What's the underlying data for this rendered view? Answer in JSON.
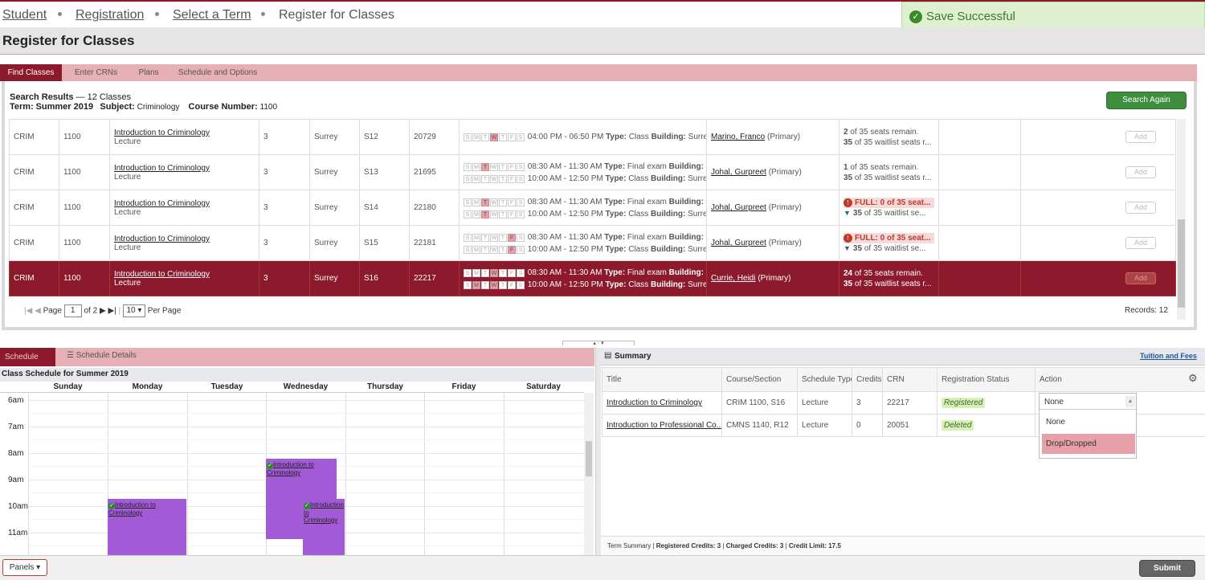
{
  "breadcrumb": [
    "Student",
    "Registration",
    "Select a Term",
    "Register for Classes"
  ],
  "toast": "Save Successful",
  "page_title": "Register for Classes",
  "tabs": [
    "Find Classes",
    "Enter CRNs",
    "Plans",
    "Schedule and Options"
  ],
  "search": {
    "heading": "Search Results",
    "count": "— 12 Classes",
    "term_label": "Term:",
    "term": "Summer 2019",
    "subject_label": "Subject:",
    "subject": "Criminology",
    "course_label": "Course Number:",
    "course": "1100",
    "search_again": "Search Again"
  },
  "rows": [
    {
      "subj": "CRIM",
      "num": "1100",
      "title": "Introduction to Criminology",
      "type": "Lecture",
      "cr": "3",
      "campus": "Surrey",
      "sec": "S12",
      "crn": "20729",
      "meet": [
        {
          "days": [
            "W"
          ],
          "text": "04:00 PM - 06:50 PM",
          "mtype": "Class",
          "bld": "Surre"
        }
      ],
      "instr": "Marino, Franco",
      "role": "(Primary)",
      "seats": "2",
      "seat_text": "of 35 seats remain.",
      "wait": "35",
      "wait_text": "of 35 waitlist seats r...",
      "full": false
    },
    {
      "subj": "CRIM",
      "num": "1100",
      "title": "Introduction to Criminology",
      "type": "Lecture",
      "cr": "3",
      "campus": "Surrey",
      "sec": "S13",
      "crn": "21695",
      "meet": [
        {
          "days": [
            "T"
          ],
          "text": "08:30 AM - 11:30 AM",
          "mtype": "Final exam",
          "bld": ""
        },
        {
          "days": [],
          "text": "10:00 AM - 12:50 PM",
          "mtype": "Class",
          "bld": "Surre"
        }
      ],
      "instr": "Johal, Gurpreet",
      "role": "(Primary)",
      "seats": "1",
      "seat_text": "of 35 seats remain.",
      "wait": "35",
      "wait_text": "of 35 waitlist seats r...",
      "full": false
    },
    {
      "subj": "CRIM",
      "num": "1100",
      "title": "Introduction to Criminology",
      "type": "Lecture",
      "cr": "3",
      "campus": "Surrey",
      "sec": "S14",
      "crn": "22180",
      "meet": [
        {
          "days": [
            "T"
          ],
          "text": "08:30 AM - 11:30 AM",
          "mtype": "Final exam",
          "bld": ""
        },
        {
          "days": [
            "T"
          ],
          "text": "10:00 AM - 12:50 PM",
          "mtype": "Class",
          "bld": "Surre"
        }
      ],
      "instr": "Johal, Gurpreet",
      "role": "(Primary)",
      "seats": "",
      "seat_text": "FULL: 0 of 35 seat...",
      "wait": "35",
      "wait_text": "of 35 waitlist se...",
      "full": true
    },
    {
      "subj": "CRIM",
      "num": "1100",
      "title": "Introduction to Criminology",
      "type": "Lecture",
      "cr": "3",
      "campus": "Surrey",
      "sec": "S15",
      "crn": "22181",
      "meet": [
        {
          "days": [
            "F"
          ],
          "text": "08:30 AM - 11:30 AM",
          "mtype": "Final exam",
          "bld": ""
        },
        {
          "days": [
            "F"
          ],
          "text": "10:00 AM - 12:50 PM",
          "mtype": "Class",
          "bld": "Surre"
        }
      ],
      "instr": "Johal, Gurpreet",
      "role": "(Primary)",
      "seats": "",
      "seat_text": "FULL: 0 of 35 seat...",
      "wait": "35",
      "wait_text": "of 35 waitlist se...",
      "full": true
    },
    {
      "subj": "CRIM",
      "num": "1100",
      "title": "Introduction to Criminology",
      "type": "Lecture",
      "cr": "3",
      "campus": "Surrey",
      "sec": "S16",
      "crn": "22217",
      "meet": [
        {
          "days": [
            "W"
          ],
          "text": "08:30 AM - 11:30 AM",
          "mtype": "Final exam",
          "bld": ""
        },
        {
          "days": [
            "M",
            "W"
          ],
          "text": "10:00 AM - 12:50 PM",
          "mtype": "Class",
          "bld": "Surre"
        }
      ],
      "instr": "Currie, Heidi",
      "role": "(Primary)",
      "seats": "24",
      "seat_text": "of 35 seats remain.",
      "wait": "35",
      "wait_text": "of 35 waitlist seats r...",
      "full": false,
      "selected": true
    }
  ],
  "labels": {
    "type": "Type:",
    "building": "Building:",
    "add": "Add"
  },
  "pager": {
    "page_label": "Page",
    "page": "1",
    "of": "of",
    "total": "2",
    "per_page": "10",
    "per_page_label": "Per Page",
    "records": "Records: 12"
  },
  "schedule": {
    "tab_schedule": "Schedule",
    "tab_details": "Schedule Details",
    "title": "Class Schedule for Summer 2019",
    "days": [
      "Sunday",
      "Monday",
      "Tuesday",
      "Wednesday",
      "Thursday",
      "Friday",
      "Saturday"
    ],
    "hours": [
      "6am",
      "7am",
      "8am",
      "9am",
      "10am",
      "11am"
    ],
    "event_title": "Introduction to Criminology"
  },
  "summary": {
    "title": "Summary",
    "tuition_link": "Tuition and Fees",
    "cols": [
      "Title",
      "Course/Section",
      "Schedule Type",
      "Credits",
      "CRN",
      "Registration Status",
      "Action"
    ],
    "rows": [
      {
        "title": "Introduction to Criminology",
        "course": "CRIM 1100, S16",
        "stype": "Lecture",
        "cr": "3",
        "crn": "22217",
        "status": "Registered",
        "action": "None"
      },
      {
        "title": "Introduction to Professional Co...",
        "course": "CMNS 1140, R12",
        "stype": "Lecture",
        "cr": "0",
        "crn": "20051",
        "status": "Deleted",
        "action": ""
      }
    ],
    "dropdown_options": [
      "None",
      "Drop/Dropped"
    ],
    "term_summary": "Term Summary |",
    "registered_credits": "Registered Credits: 3",
    "charged_credits": "Charged Credits: 3",
    "credit_limit": "Credit Limit: 17.5"
  },
  "footer": {
    "panels": "Panels",
    "submit": "Submit"
  },
  "colors": {
    "maroon": "#8c1a2c",
    "pink_tab": "#e6b0b6",
    "event_purple": "#a25ad6",
    "green": "#3e8e3e"
  }
}
